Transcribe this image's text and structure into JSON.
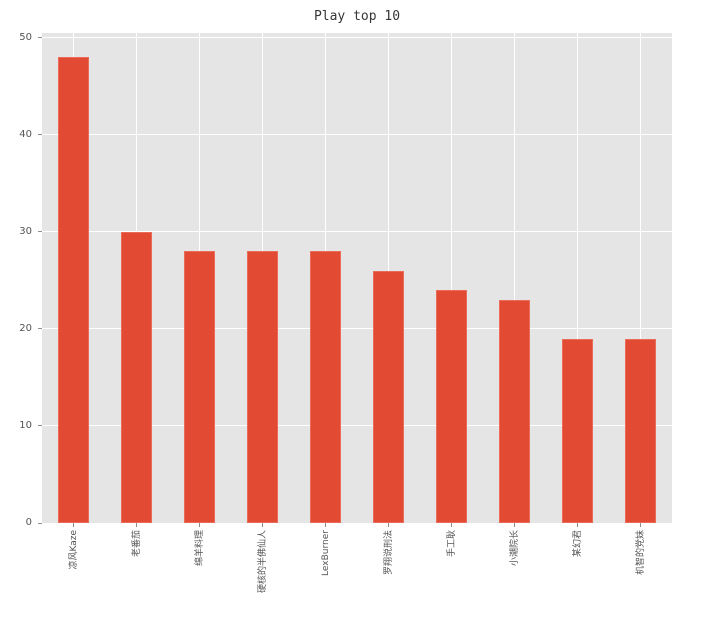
{
  "figure": {
    "title": "Play top 10"
  },
  "chart_data": {
    "type": "bar",
    "title": "Play top 10",
    "xlabel": "",
    "ylabel": "",
    "categories": [
      "凉风Kaze",
      "老番茄",
      "绵羊料理",
      "硬核的半佛仙人",
      "LexBurner",
      "罗翔说刑法",
      "手工耿",
      "小潮院长",
      "某幻君",
      "机智的党妹"
    ],
    "values": [
      48,
      30,
      28,
      28,
      28,
      26,
      24,
      23,
      19,
      19
    ],
    "yticks": [
      0,
      10,
      20,
      30,
      40,
      50
    ],
    "ylim": [
      0,
      50.5
    ],
    "grid": true,
    "legend": false,
    "style": "ggplot",
    "bar_width_fraction": 0.5,
    "xlabel_rotation_deg": 90,
    "colors": {
      "bar": "#E24A33",
      "bar_edge": "#EA6C58",
      "plot_background": "#E5E5E5",
      "gridline": "#FFFFFF",
      "tick_label": "#555555",
      "tick_mark": "#8E8E8E",
      "title": "#363636"
    }
  }
}
